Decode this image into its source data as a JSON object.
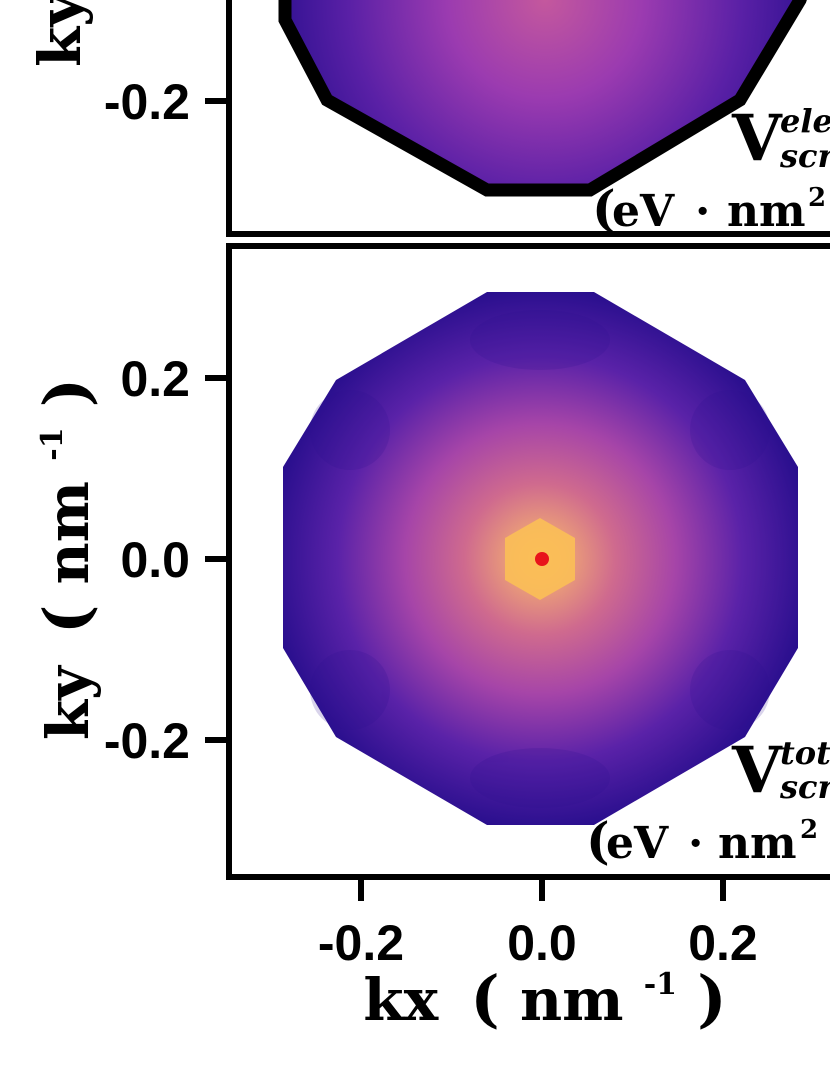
{
  "chart_data": [
    {
      "type": "heatmap",
      "panel": "top",
      "xlabel": "",
      "ylabel": "ky",
      "y_ticks": [
        -0.2
      ],
      "y_tick_labels": [
        "-0.2"
      ],
      "boundary": "12-sided polygon (thick black outline)",
      "colormap": "plasma",
      "annotation": {
        "symbol": "V",
        "sup": "ele",
        "sub": "scr",
        "unit_main": "eV",
        "unit_dot": "·",
        "unit_nm": "nm",
        "unit_exp": "2"
      }
    },
    {
      "type": "heatmap",
      "panel": "bottom",
      "xlabel": "kx",
      "xlabel_unit_base": "nm",
      "xlabel_unit_exp": "-1",
      "ylabel": "ky",
      "ylabel_unit_base": "nm",
      "ylabel_unit_exp": "-1",
      "x_ticks": [
        -0.2,
        0.0,
        0.2
      ],
      "x_tick_labels": [
        "-0.2",
        "0.0",
        "0.2"
      ],
      "y_ticks": [
        0.2,
        0.0,
        -0.2
      ],
      "y_tick_labels": [
        "0.2",
        "0.0",
        "-0.2"
      ],
      "xlim": [
        -0.35,
        0.45
      ],
      "ylim": [
        -0.35,
        0.33
      ],
      "boundary": "12-sided polygon (no outline)",
      "colormap": "plasma",
      "peak_marker": {
        "x": 0.0,
        "y": 0.0,
        "color": "#e8141b"
      },
      "annotation": {
        "symbol": "V",
        "sup": "tot",
        "sub": "scr",
        "unit_main": "eV",
        "unit_dot": "·",
        "unit_nm": "nm",
        "unit_exp": "2"
      }
    }
  ],
  "colors": {
    "outer": "#2a0f8e",
    "mid": "#7a2bb0",
    "ring": "#c85ba6",
    "inner": "#e99b7a",
    "core": "#fbbf57",
    "peak": "#e8141b",
    "axis": "#000000"
  }
}
